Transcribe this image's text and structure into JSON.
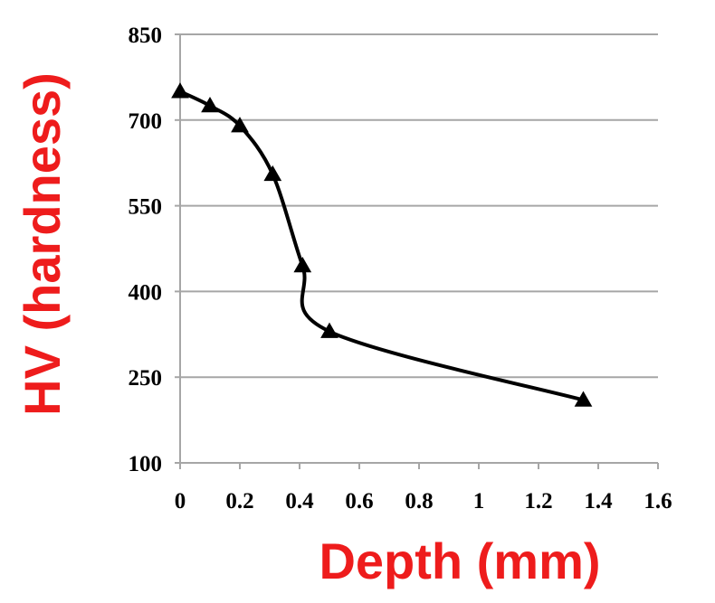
{
  "chart_data": {
    "type": "line",
    "xlabel": "Depth (mm)",
    "ylabel": "HV (hardness)",
    "xlim": [
      0,
      1.6
    ],
    "ylim": [
      100,
      850
    ],
    "x_ticks": [
      "0",
      "0.2",
      "0.4",
      "0.6",
      "0.8",
      "1",
      "1.2",
      "1.4",
      "1.6"
    ],
    "y_ticks": [
      "100",
      "250",
      "400",
      "550",
      "700",
      "850"
    ],
    "grid": "horizontal",
    "legend": "none",
    "marker": "triangle",
    "colors": {
      "series": "#000000",
      "axis_title": "#ee1c1c",
      "grid": "#a6a6a6"
    },
    "series": [
      {
        "x": [
          0,
          0.1,
          0.2,
          0.31,
          0.41,
          0.5,
          1.35
        ],
        "y": [
          750,
          725,
          690,
          605,
          445,
          330,
          210
        ]
      }
    ]
  }
}
